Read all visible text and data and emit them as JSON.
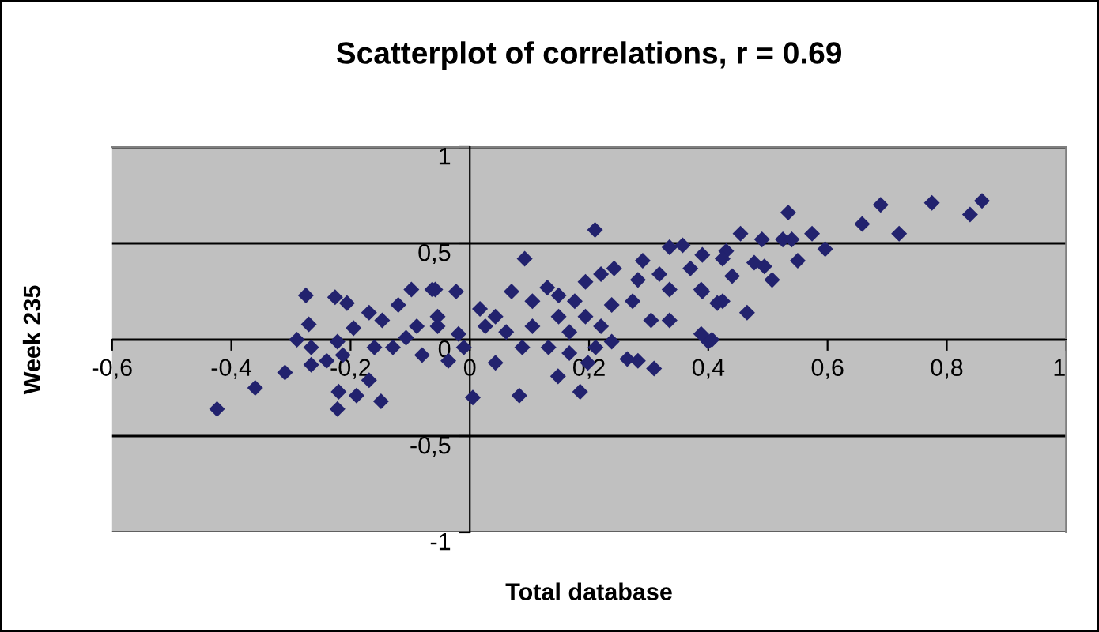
{
  "chart_data": {
    "type": "scatter",
    "title": "Scatterplot of correlations, r = 0.69",
    "xlabel": "Total database",
    "ylabel": "Week 235",
    "xlim": [
      -0.6,
      1
    ],
    "ylim": [
      -1,
      1
    ],
    "xticks": [
      {
        "value": -0.6,
        "label": "-0,6"
      },
      {
        "value": -0.4,
        "label": "-0,4"
      },
      {
        "value": -0.2,
        "label": "-0,2"
      },
      0,
      {
        "value": 0.2,
        "label": "0,2"
      },
      {
        "value": 0.4,
        "label": "0,4"
      },
      {
        "value": 0.6,
        "label": "0,6"
      },
      {
        "value": 0.8,
        "label": "0,8"
      },
      1
    ],
    "yticks": [
      -1,
      {
        "value": -0.5,
        "label": "-0,5"
      },
      0,
      {
        "value": 0.5,
        "label": "0,5"
      },
      1
    ],
    "grid": "y",
    "legend": false,
    "marker": "diamond",
    "series": [
      {
        "color": "#22226e",
        "x": [
          0.534,
          0.689,
          0.775,
          0.859,
          0.839,
          0.658,
          0.72,
          0.596,
          0.574,
          0.55,
          0.507,
          0.465,
          0.4,
          0.454,
          0.49,
          0.525,
          0.54,
          0.477,
          0.494,
          0.43,
          0.44,
          0.415,
          0.39,
          0.39,
          -0.424,
          -0.36,
          -0.31,
          -0.275,
          -0.27,
          -0.29,
          -0.266,
          -0.266,
          -0.226,
          -0.206,
          -0.24,
          -0.222,
          -0.213,
          -0.222,
          -0.22,
          -0.19,
          -0.149,
          -0.169,
          -0.195,
          -0.169,
          -0.147,
          -0.129,
          -0.12,
          -0.098,
          -0.063,
          -0.08,
          -0.089,
          -0.16,
          -0.107,
          -0.054,
          0.21,
          0.092,
          0.005,
          0.083,
          0.148,
          0.185,
          0.198,
          -0.036,
          0.043,
          0.017,
          -0.058,
          -0.023,
          0.07,
          0.13,
          0.194,
          0.242,
          0.29,
          0.335,
          0.357,
          0.406,
          0.388,
          0.309,
          0.282,
          0.264,
          0.304,
          0.335,
          0.335,
          0.37,
          0.424,
          0.424,
          0.388,
          0.149,
          0.105,
          0.061,
          0.026,
          -0.019,
          -0.054,
          0.132,
          0.167,
          0.194,
          0.22,
          0.238,
          0.273,
          0.176,
          0.105,
          0.238,
          0.211,
          0.088,
          0.167,
          0.282,
          0.318,
          0.22,
          0.149,
          0.043,
          -0.01
        ],
        "values": [
          0.66,
          0.7,
          0.71,
          0.72,
          0.65,
          0.6,
          0.55,
          0.47,
          0.55,
          0.41,
          0.31,
          0.14,
          -0.01,
          0.55,
          0.52,
          0.52,
          0.52,
          0.4,
          0.38,
          0.46,
          0.33,
          0.19,
          0.44,
          0.25,
          -0.36,
          -0.25,
          -0.17,
          0.23,
          0.08,
          0.0,
          -0.04,
          -0.13,
          0.22,
          0.19,
          -0.11,
          -0.01,
          -0.08,
          -0.36,
          -0.27,
          -0.29,
          -0.32,
          -0.21,
          0.06,
          0.14,
          0.1,
          -0.04,
          0.18,
          0.26,
          0.26,
          -0.08,
          0.07,
          -0.04,
          0.01,
          0.12,
          0.57,
          0.42,
          -0.3,
          -0.29,
          -0.19,
          -0.27,
          -0.12,
          -0.11,
          -0.12,
          0.16,
          0.26,
          0.25,
          0.25,
          0.27,
          0.3,
          0.37,
          0.41,
          0.48,
          0.49,
          0.0,
          0.03,
          -0.15,
          -0.11,
          -0.1,
          0.1,
          0.1,
          0.26,
          0.37,
          0.2,
          0.42,
          0.26,
          0.12,
          0.07,
          0.04,
          0.07,
          0.03,
          0.07,
          -0.04,
          0.04,
          0.12,
          0.07,
          0.18,
          0.2,
          0.2,
          0.2,
          -0.01,
          -0.04,
          -0.04,
          -0.07,
          0.31,
          0.34,
          0.34,
          0.23,
          0.12,
          -0.04
        ]
      }
    ]
  }
}
